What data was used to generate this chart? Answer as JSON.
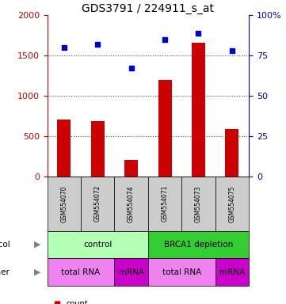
{
  "title": "GDS3791 / 224911_s_at",
  "samples": [
    "GSM554070",
    "GSM554072",
    "GSM554074",
    "GSM554071",
    "GSM554073",
    "GSM554075"
  ],
  "counts": [
    700,
    690,
    200,
    1200,
    1660,
    590
  ],
  "percentile_ranks": [
    80,
    82,
    67,
    85,
    89,
    78
  ],
  "ylim_left": [
    0,
    2000
  ],
  "ylim_right": [
    0,
    100
  ],
  "yticks_left": [
    0,
    500,
    1000,
    1500,
    2000
  ],
  "yticks_right": [
    0,
    25,
    50,
    75,
    100
  ],
  "bar_color": "#cc0000",
  "dot_color": "#0000cc",
  "protocol_labels": [
    {
      "label": "control",
      "start": 0,
      "end": 3,
      "color": "#b3ffb3"
    },
    {
      "label": "BRCA1 depletion",
      "start": 3,
      "end": 6,
      "color": "#33cc33"
    }
  ],
  "other_labels": [
    {
      "label": "total RNA",
      "start": 0,
      "end": 2,
      "color": "#ee82ee"
    },
    {
      "label": "mRNA",
      "start": 2,
      "end": 3,
      "color": "#cc00cc"
    },
    {
      "label": "total RNA",
      "start": 3,
      "end": 5,
      "color": "#ee82ee"
    },
    {
      "label": "mRNA",
      "start": 5,
      "end": 6,
      "color": "#cc00cc"
    }
  ],
  "left_axis_color": "#cc0000",
  "right_axis_color": "#0000cc",
  "grid_color": "#555555",
  "bg_color": "#ffffff",
  "sample_box_color": "#cccccc",
  "legend_count_color": "#cc0000",
  "legend_pct_color": "#0000cc",
  "bar_width": 0.4
}
